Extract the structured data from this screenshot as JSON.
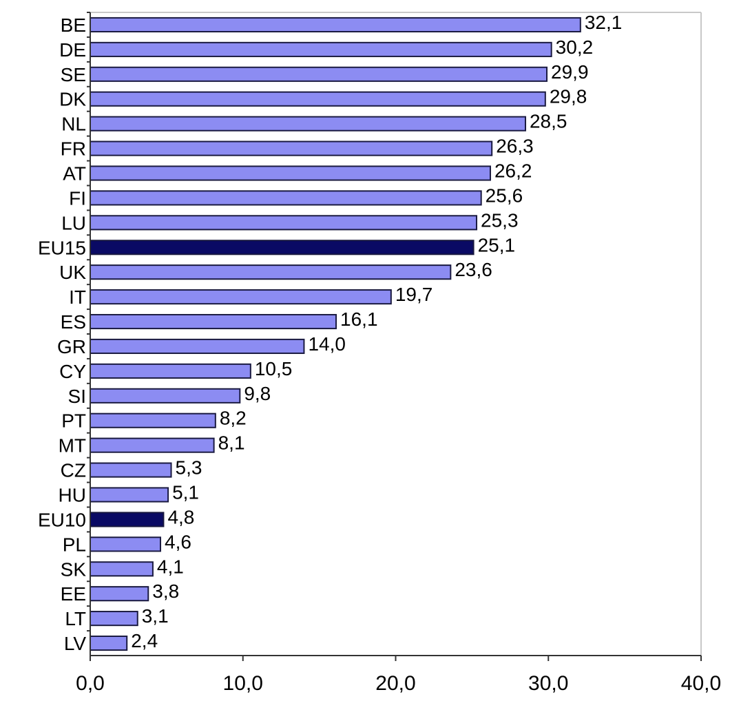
{
  "chart_data": {
    "type": "bar",
    "orientation": "horizontal",
    "categories": [
      "BE",
      "DE",
      "SE",
      "DK",
      "NL",
      "FR",
      "AT",
      "FI",
      "LU",
      "EU15",
      "UK",
      "IT",
      "ES",
      "GR",
      "CY",
      "SI",
      "PT",
      "MT",
      "CZ",
      "HU",
      "EU10",
      "PL",
      "SK",
      "EE",
      "LT",
      "LV"
    ],
    "values": [
      32.1,
      30.2,
      29.9,
      29.8,
      28.5,
      26.3,
      26.2,
      25.6,
      25.3,
      25.1,
      23.6,
      19.7,
      16.1,
      14.0,
      10.5,
      9.8,
      8.2,
      8.1,
      5.3,
      5.1,
      4.8,
      4.6,
      4.1,
      3.8,
      3.1,
      2.4
    ],
    "value_labels": [
      "32,1",
      "30,2",
      "29,9",
      "29,8",
      "28,5",
      "26,3",
      "26,2",
      "25,6",
      "25,3",
      "25,1",
      "23,6",
      "19,7",
      "16,1",
      "14,0",
      "10,5",
      "9,8",
      "8,2",
      "8,1",
      "5,3",
      "5,1",
      "4,8",
      "4,6",
      "4,1",
      "3,8",
      "3,1",
      "2,4"
    ],
    "highlight": [
      "EU15",
      "EU10"
    ],
    "xlim": [
      0,
      40
    ],
    "xticks": [
      0,
      10,
      20,
      30,
      40
    ],
    "xtick_labels": [
      "0,0",
      "10,0",
      "20,0",
      "30,0",
      "40,0"
    ],
    "grid": false,
    "legend": "none",
    "title": "",
    "xlabel": "",
    "ylabel": ""
  },
  "colors": {
    "bar": "#8c8cf2",
    "bar_highlight": "#0a0a64",
    "bar_stroke": "#1a1a40",
    "axis": "#333333",
    "frame": "#c8c8c8"
  }
}
